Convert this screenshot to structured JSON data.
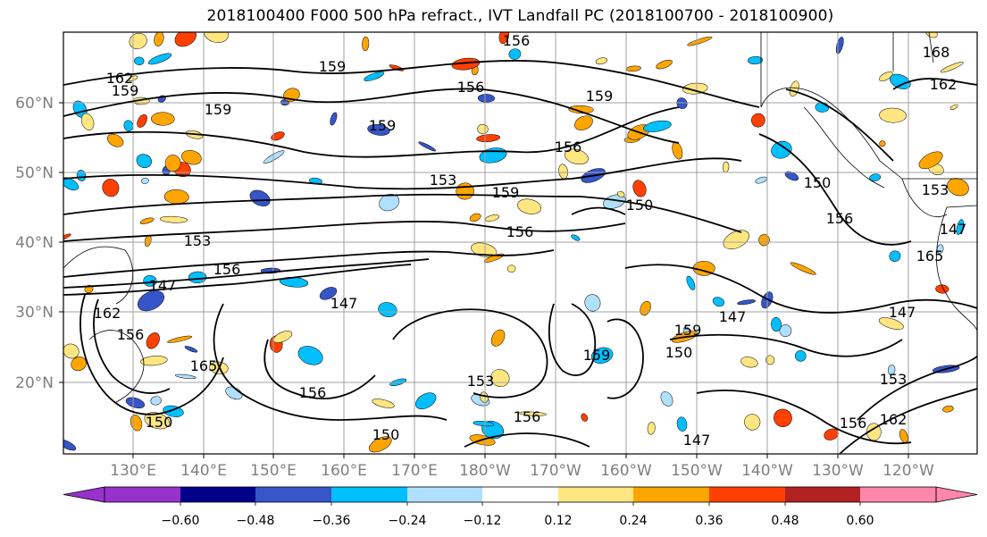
{
  "figure": {
    "title": "2018100400 F000 500 hPa refract., IVT Landfall PC (2018100700 - 2018100900)"
  },
  "map": {
    "lat_labels": [
      "60°N",
      "50°N",
      "40°N",
      "30°N",
      "20°N"
    ],
    "lon_labels": [
      "130°E",
      "140°E",
      "150°E",
      "160°E",
      "170°E",
      "180°W",
      "170°W",
      "160°W",
      "150°W",
      "140°W",
      "130°W",
      "120°W"
    ],
    "contour_labels": [
      "156",
      "162",
      "159",
      "159",
      "159",
      "156",
      "159",
      "159",
      "156",
      "153",
      "159",
      "150",
      "156",
      "153",
      "156",
      "150",
      "156",
      "147",
      "147",
      "147",
      "147",
      "150",
      "153",
      "159",
      "156",
      "150",
      "147",
      "153",
      "156",
      "162",
      "165",
      "162",
      "168",
      "156",
      "150",
      "147",
      "153",
      "162",
      "165",
      "159",
      "156"
    ]
  },
  "colorbar": {
    "ticks": [
      "−0.60",
      "−0.48",
      "−0.36",
      "−0.24",
      "−0.12",
      "0.12",
      "0.24",
      "0.36",
      "0.48",
      "0.60"
    ],
    "colors": [
      "#9932cc",
      "#00008b",
      "#3655c9",
      "#00bfff",
      "#b0e0ff",
      "#ffffff",
      "#ffe680",
      "#ffa500",
      "#ff4000",
      "#b22222",
      "#ff88aa"
    ]
  },
  "colors": {
    "title_text": "#000000",
    "axis_label": "#7f7f7f",
    "grid": "#a0a0a0",
    "contour": "#000000",
    "coast": "#000000"
  }
}
